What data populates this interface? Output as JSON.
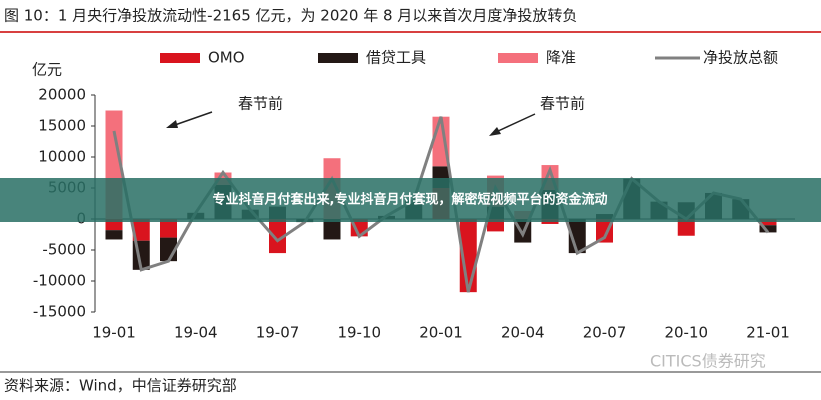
{
  "chart_data": {
    "type": "bar-line",
    "title": "图 10：1 月央行净投放流动性-2165 亿元，为 2020 年 8 月以来首次月度净投放转负",
    "y_label": "亿元",
    "categories": [
      "19-01",
      null,
      null,
      "19-04",
      null,
      null,
      "19-07",
      null,
      null,
      "19-10",
      null,
      null,
      "20-01",
      null,
      null,
      "20-04",
      null,
      null,
      "20-07",
      null,
      null,
      "20-10",
      null,
      null,
      "21-01"
    ],
    "series": [
      {
        "name": "OMO",
        "color": "#d9141e",
        "kind": "bar",
        "values": [
          -1800,
          -3500,
          -3000,
          0,
          0,
          0,
          -5500,
          0,
          0,
          -2800,
          0,
          0,
          5000,
          -11800,
          -2000,
          0,
          -800,
          0,
          -3800,
          0,
          0,
          -2700,
          0,
          0,
          -1000
        ]
      },
      {
        "name": "借贷工具",
        "color": "#231815",
        "kind": "bar",
        "values": [
          -1500,
          -4700,
          -3800,
          1000,
          5500,
          1500,
          2000,
          -500,
          -3300,
          0,
          500,
          3000,
          3500,
          0,
          2000,
          -3800,
          4700,
          -5500,
          800,
          6500,
          2800,
          2700,
          4200,
          3200,
          -1165
        ]
      },
      {
        "name": "降准",
        "color": "#f4707c",
        "kind": "bar",
        "values": [
          17500,
          0,
          0,
          0,
          2000,
          0,
          0,
          0,
          9800,
          0,
          0,
          0,
          8000,
          0,
          5000,
          1300,
          4000,
          0,
          0,
          0,
          0,
          0,
          0,
          0,
          0
        ]
      },
      {
        "name": "净投放总额",
        "color": "#808080",
        "kind": "line",
        "values": [
          14200,
          -8200,
          -6800,
          1000,
          7500,
          1500,
          -3500,
          -500,
          6500,
          -2800,
          500,
          3000,
          16500,
          -11800,
          5000,
          -2500,
          7900,
          -5500,
          -3000,
          6500,
          2800,
          0,
          4200,
          3200,
          -2165
        ]
      }
    ],
    "ylim": [
      -15000,
      20000
    ],
    "yticks": [
      -15000,
      -10000,
      -5000,
      0,
      5000,
      10000,
      15000,
      20000
    ],
    "annotations": [
      "春节前",
      "春节前"
    ],
    "source": "资料来源：Wind，中信证券研究部",
    "watermark": "CITICS债券研究"
  },
  "overlay_banner": "专业抖音月付套出来,专业抖音月付套现，解密短视频平台的资金流动"
}
